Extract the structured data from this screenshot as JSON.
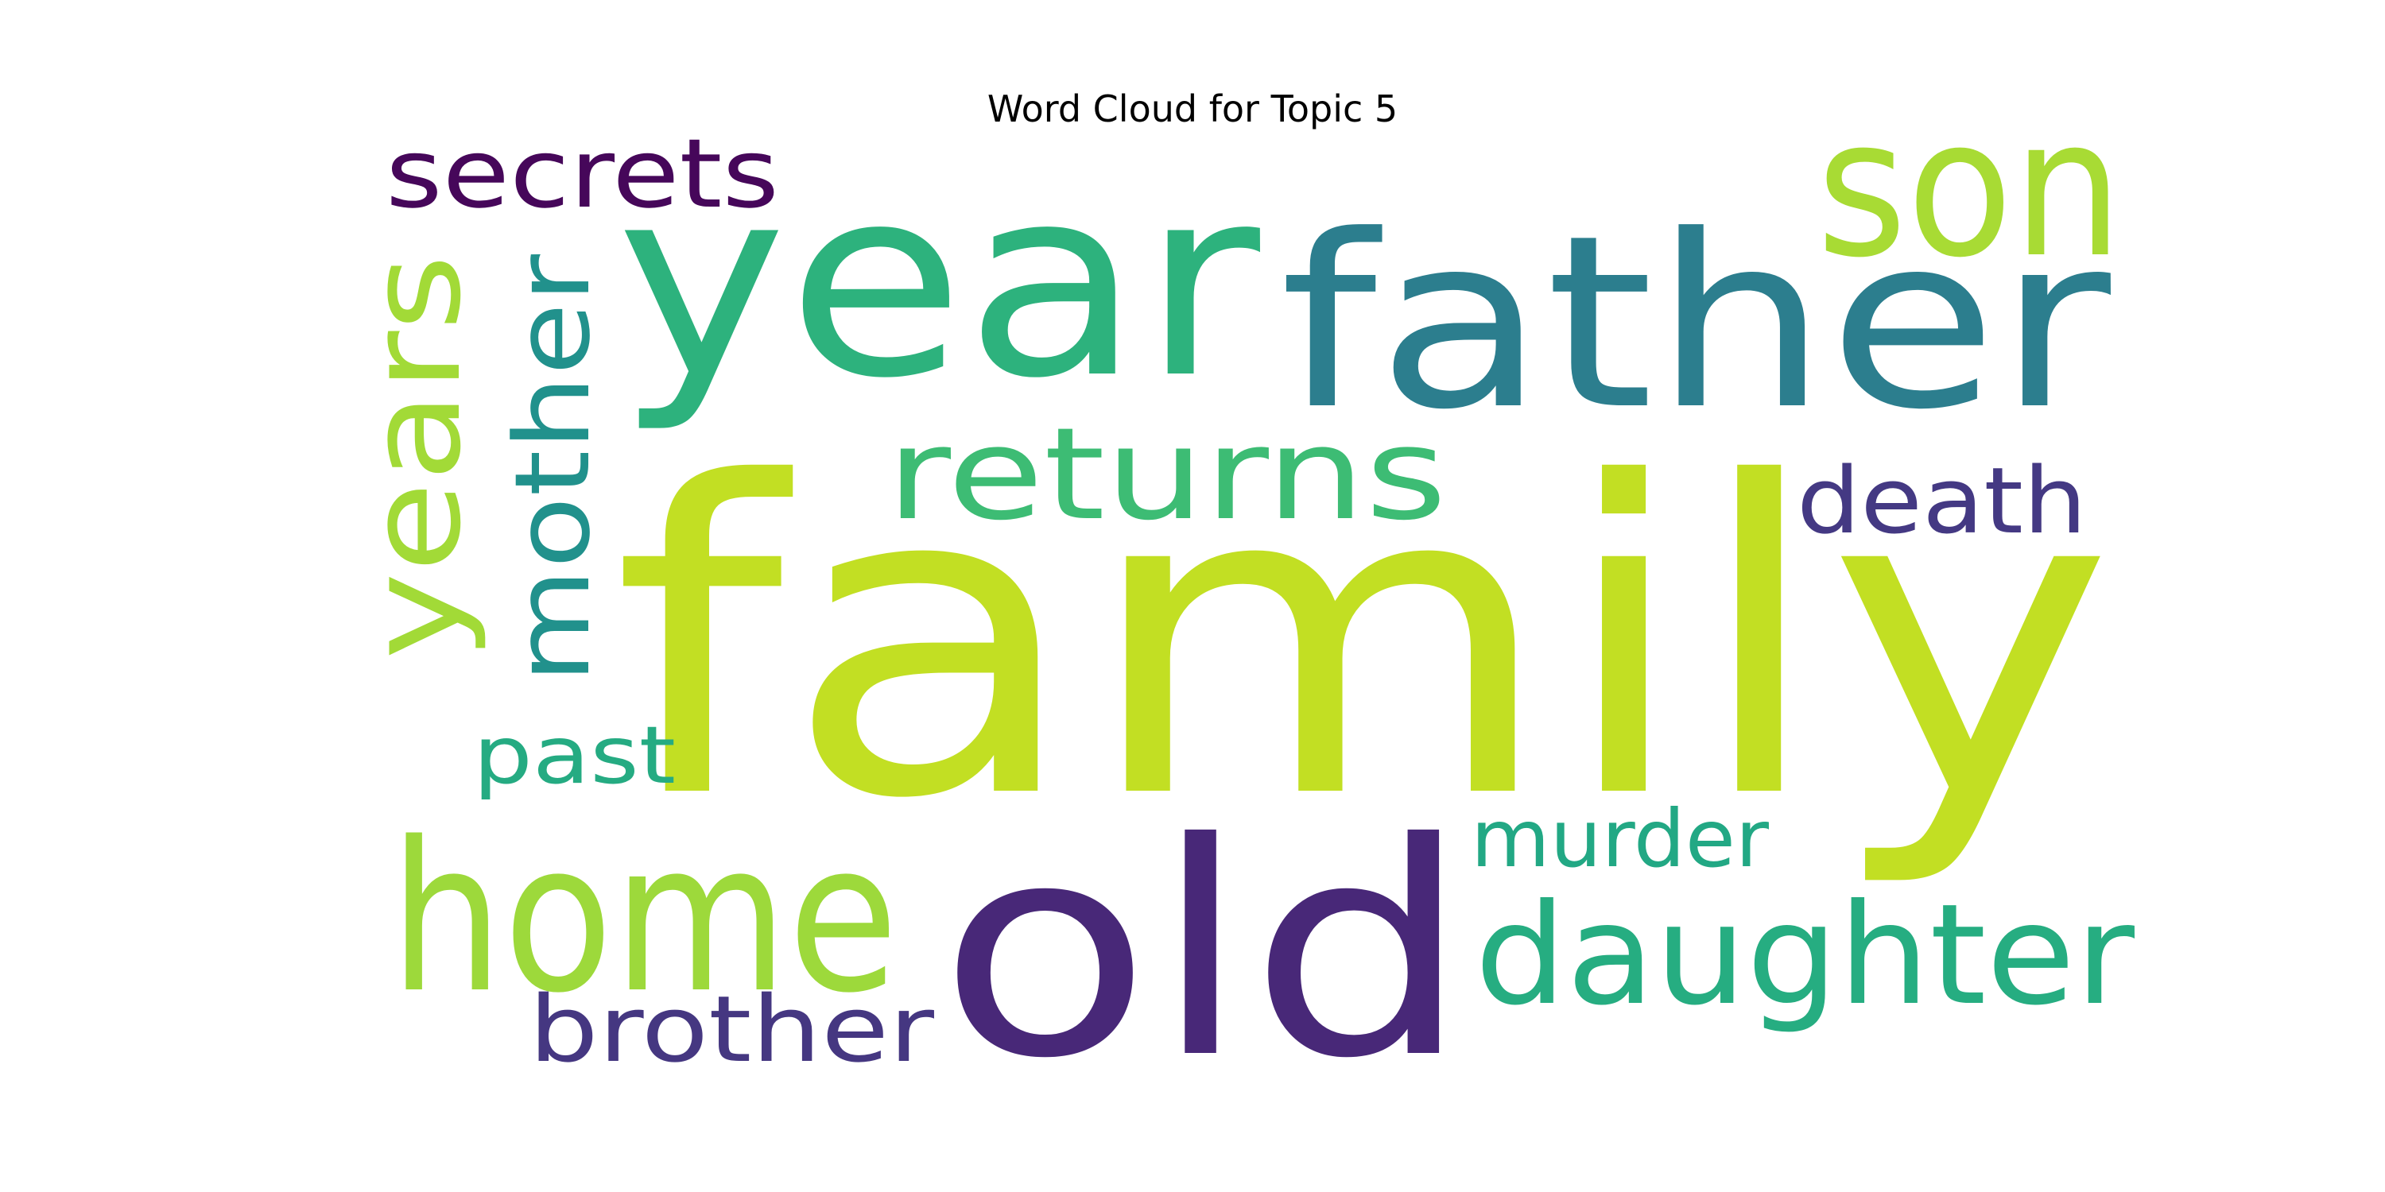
{
  "title": "Word Cloud for Topic 5",
  "colormap": "viridis",
  "words": [
    {
      "text": "family",
      "color": "#c2df23",
      "orientation": "horizontal"
    },
    {
      "text": "year",
      "color": "#2db27d",
      "orientation": "horizontal"
    },
    {
      "text": "father",
      "color": "#2c7e8e",
      "orientation": "horizontal"
    },
    {
      "text": "old",
      "color": "#482878",
      "orientation": "horizontal"
    },
    {
      "text": "home",
      "color": "#9dd93b",
      "orientation": "horizontal"
    },
    {
      "text": "son",
      "color": "#a8db34",
      "orientation": "horizontal"
    },
    {
      "text": "daughter",
      "color": "#26ad81",
      "orientation": "horizontal"
    },
    {
      "text": "returns",
      "color": "#3dbc74",
      "orientation": "horizontal"
    },
    {
      "text": "years",
      "color": "#a2da37",
      "orientation": "vertical"
    },
    {
      "text": "mother",
      "color": "#21918c",
      "orientation": "vertical"
    },
    {
      "text": "secrets",
      "color": "#46075a",
      "orientation": "horizontal"
    },
    {
      "text": "death",
      "color": "#443983",
      "orientation": "horizontal"
    },
    {
      "text": "brother",
      "color": "#453781",
      "orientation": "horizontal"
    },
    {
      "text": "murder",
      "color": "#22a884",
      "orientation": "horizontal"
    },
    {
      "text": "past",
      "color": "#25ab82",
      "orientation": "horizontal"
    }
  ]
}
